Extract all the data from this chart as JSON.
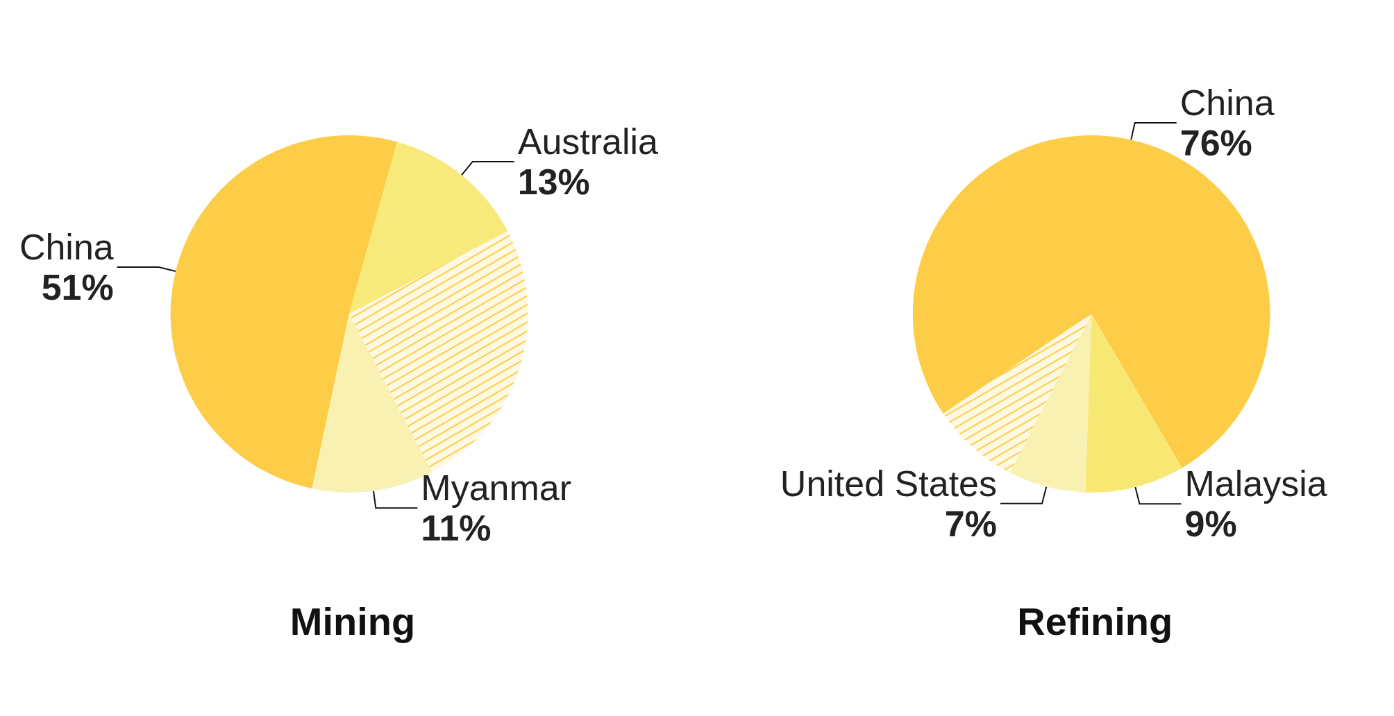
{
  "chart_data": [
    {
      "type": "pie",
      "title": "Mining",
      "categories": [
        "China",
        "Australia",
        null,
        "Myanmar"
      ],
      "values": [
        51,
        13,
        25,
        11
      ],
      "colors": [
        "#fecd48",
        "#f8ea7a",
        "#fff8e2",
        "#f8f1b2"
      ],
      "value_labels": [
        "51%",
        "13%",
        null,
        "11%"
      ]
    },
    {
      "type": "pie",
      "title": "Refining",
      "categories": [
        "China",
        "Malaysia",
        "United States",
        null
      ],
      "values": [
        76,
        9,
        7,
        8
      ],
      "colors": [
        "#fecd48",
        "#f7e873",
        "#f8f1b2",
        "#fff8e2"
      ],
      "value_labels": [
        "76%",
        "9%",
        "7%",
        null
      ]
    }
  ]
}
